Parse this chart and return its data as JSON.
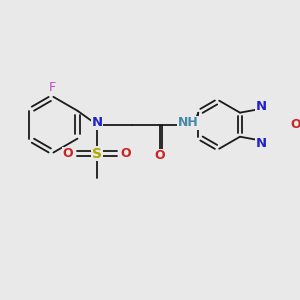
{
  "background_color": "#e9e9e9",
  "figsize": [
    3.0,
    3.0
  ],
  "dpi": 100,
  "lw": 1.3,
  "colors": {
    "black": "#1a1a1a",
    "N": "#2222cc",
    "O": "#cc2222",
    "F": "#cc44cc",
    "S": "#aaaa00",
    "NH": "#4488aa"
  }
}
